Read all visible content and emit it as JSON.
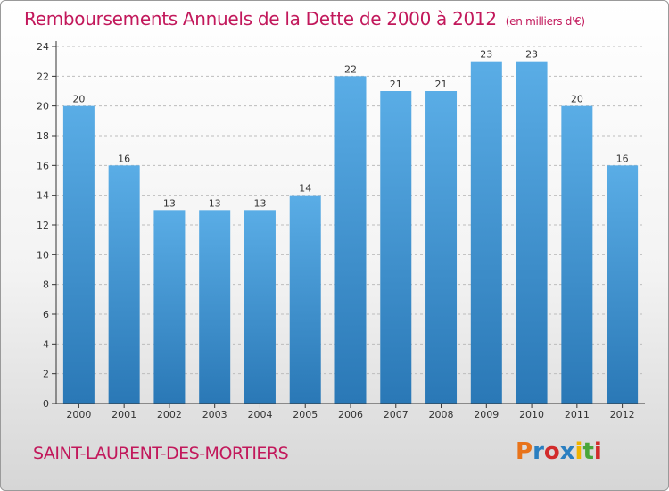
{
  "title": "Remboursements Annuels de la Dette de 2000 à 2012",
  "unit_note": "(en milliers d'€)",
  "commune": "SAINT-LAURENT-DES-MORTIERS",
  "logo_text": "Proxiti",
  "logo_colors": [
    "#e8731a",
    "#2a7fc1",
    "#d22b2b",
    "#2a7fc1",
    "#f0b400",
    "#4aa63a",
    "#d22b2b"
  ],
  "colors": {
    "title": "#c2185b",
    "bar_top": "#5aade6",
    "bar_bottom": "#2a78b6",
    "grid": "#bdbdbd",
    "axis": "#333333"
  },
  "chart_data": {
    "type": "bar",
    "title": "Remboursements Annuels de la Dette de 2000 à 2012",
    "subtitle": "(en milliers d'€)",
    "xlabel": "",
    "ylabel": "",
    "categories": [
      "2000",
      "2001",
      "2002",
      "2003",
      "2004",
      "2005",
      "2006",
      "2007",
      "2008",
      "2009",
      "2010",
      "2011",
      "2012"
    ],
    "values": [
      20,
      16,
      13,
      13,
      13,
      14,
      22,
      21,
      21,
      23,
      23,
      20,
      16
    ],
    "ylim": [
      0,
      24
    ],
    "yticks": [
      0,
      2,
      4,
      6,
      8,
      10,
      12,
      14,
      16,
      18,
      20,
      22,
      24
    ],
    "grid": true,
    "data_labels": true
  }
}
